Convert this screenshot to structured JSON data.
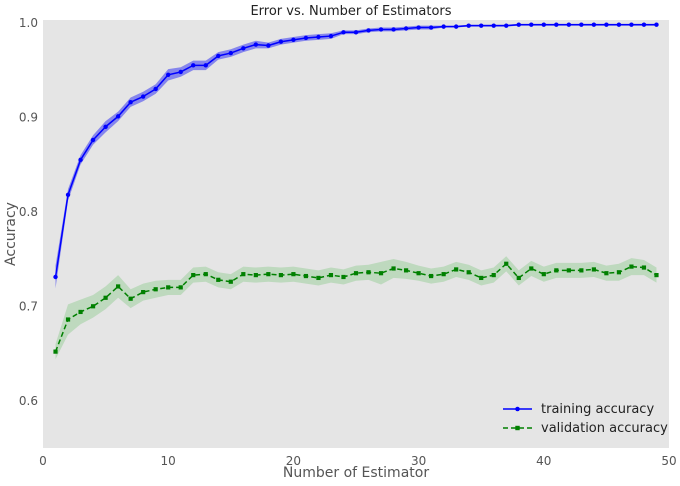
{
  "chart_data": {
    "type": "line",
    "title": "Error vs. Number of Estimators",
    "xlabel": "Number of Estimator",
    "ylabel": "Accuracy",
    "xlim": [
      0,
      50
    ],
    "ylim": [
      0.55,
      1.003
    ],
    "xticks": [
      0,
      10,
      20,
      30,
      40,
      50
    ],
    "xtick_labels": [
      "0",
      "10",
      "20",
      "30",
      "40",
      "50"
    ],
    "yticks": [
      0.6,
      0.7,
      0.8,
      0.9,
      1.0
    ],
    "ytick_labels": [
      "0.6",
      "0.7",
      "0.8",
      "0.9",
      "1.0"
    ],
    "grid": false,
    "legend_position": "bottom-right",
    "x": [
      1,
      2,
      3,
      4,
      5,
      6,
      7,
      8,
      9,
      10,
      11,
      12,
      13,
      14,
      15,
      16,
      17,
      18,
      19,
      20,
      21,
      22,
      23,
      24,
      25,
      26,
      27,
      28,
      29,
      30,
      31,
      32,
      33,
      34,
      35,
      36,
      37,
      38,
      39,
      40,
      41,
      42,
      43,
      44,
      45,
      46,
      47,
      48,
      49
    ],
    "series": [
      {
        "name": "training accuracy",
        "color": "#0000ff",
        "band_color": "#6666ee",
        "linestyle": "solid",
        "marker": "circle",
        "values": [
          0.731,
          0.818,
          0.855,
          0.876,
          0.89,
          0.901,
          0.916,
          0.922,
          0.93,
          0.945,
          0.948,
          0.955,
          0.955,
          0.965,
          0.968,
          0.973,
          0.977,
          0.976,
          0.98,
          0.982,
          0.984,
          0.985,
          0.986,
          0.99,
          0.99,
          0.992,
          0.993,
          0.993,
          0.994,
          0.995,
          0.995,
          0.996,
          0.996,
          0.997,
          0.997,
          0.997,
          0.997,
          0.998,
          0.998,
          0.998,
          0.998,
          0.998,
          0.998,
          0.998,
          0.998,
          0.998,
          0.998,
          0.998,
          0.998
        ],
        "band": [
          0.012,
          0.006,
          0.005,
          0.005,
          0.006,
          0.005,
          0.005,
          0.005,
          0.005,
          0.006,
          0.005,
          0.005,
          0.005,
          0.004,
          0.004,
          0.004,
          0.004,
          0.003,
          0.003,
          0.003,
          0.003,
          0.003,
          0.003,
          0.002,
          0.002,
          0.002,
          0.002,
          0.002,
          0.002,
          0.002,
          0.002,
          0.001,
          0.001,
          0.001,
          0.001,
          0.001,
          0.001,
          0.001,
          0.001,
          0.001,
          0.001,
          0.001,
          0.001,
          0.001,
          0.001,
          0.001,
          0.001,
          0.001,
          0.001
        ]
      },
      {
        "name": "validation accuracy",
        "color": "#008000",
        "band_color": "#9fd09f",
        "linestyle": "dashed",
        "marker": "square",
        "values": [
          0.652,
          0.686,
          0.694,
          0.7,
          0.709,
          0.721,
          0.708,
          0.715,
          0.718,
          0.72,
          0.72,
          0.733,
          0.734,
          0.728,
          0.726,
          0.734,
          0.733,
          0.734,
          0.733,
          0.734,
          0.732,
          0.73,
          0.733,
          0.731,
          0.735,
          0.736,
          0.735,
          0.74,
          0.738,
          0.735,
          0.732,
          0.734,
          0.739,
          0.736,
          0.73,
          0.733,
          0.745,
          0.73,
          0.74,
          0.734,
          0.738,
          0.738,
          0.738,
          0.739,
          0.735,
          0.736,
          0.742,
          0.741,
          0.733
        ],
        "band": [
          0.008,
          0.016,
          0.013,
          0.012,
          0.012,
          0.012,
          0.01,
          0.009,
          0.009,
          0.008,
          0.008,
          0.008,
          0.008,
          0.008,
          0.008,
          0.008,
          0.008,
          0.008,
          0.008,
          0.008,
          0.008,
          0.008,
          0.008,
          0.008,
          0.008,
          0.008,
          0.012,
          0.01,
          0.009,
          0.008,
          0.008,
          0.008,
          0.008,
          0.008,
          0.008,
          0.008,
          0.008,
          0.008,
          0.008,
          0.008,
          0.008,
          0.008,
          0.008,
          0.008,
          0.008,
          0.009,
          0.009,
          0.008,
          0.008
        ]
      }
    ]
  },
  "style": {
    "plot_background": "#e5e5e5",
    "text_color": "#555555"
  }
}
